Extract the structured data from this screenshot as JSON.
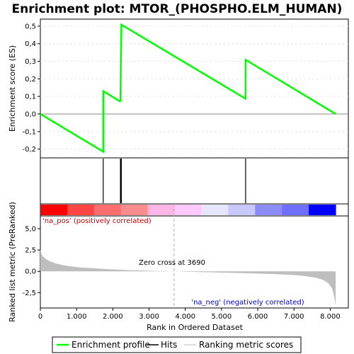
{
  "chart_data": {
    "type": "line",
    "title": "Enrichment plot: MTOR_(PHOSPHO.ELM_HUMAN)",
    "top_panel": {
      "ylabel": "Enrichment score (ES)",
      "ylim": [
        -0.25,
        0.54
      ],
      "yticks": [
        -0.2,
        -0.1,
        0.0,
        0.1,
        0.2,
        0.3,
        0.4,
        0.5
      ],
      "ytick_labels": [
        "-0,2",
        "-0,1",
        "0,0",
        "0,1",
        "0,2",
        "0,3",
        "0,4",
        "0,5"
      ],
      "grid": true,
      "series": [
        {
          "name": "Enrichment profile",
          "color": "#00ff00",
          "x": [
            0,
            1735,
            1736,
            2190,
            2210,
            2221,
            2235,
            5660,
            5665,
            8150
          ],
          "y": [
            0.0,
            -0.215,
            0.13,
            0.072,
            0.075,
            0.295,
            0.508,
            0.087,
            0.308,
            0.0
          ]
        }
      ]
    },
    "hits": {
      "name": "Hits",
      "color": "#000000",
      "positions": [
        1735,
        2210,
        2221,
        2235,
        5665
      ]
    },
    "color_bar": {
      "colors": [
        "#ff0000",
        "#ff4444",
        "#ff6e6e",
        "#ff8c8c",
        "#ffb6e6",
        "#ffc8ff",
        "#e6e6ff",
        "#c8c8ff",
        "#8c8cff",
        "#6e6eff",
        "#0000ff"
      ]
    },
    "bottom_panel": {
      "ylabel": "Ranked list metric (PreRanked)",
      "xlabel": "Rank in Ordered Dataset",
      "ylim": [
        -4.3,
        6.5
      ],
      "yticks": [
        -2.5,
        0.0,
        2.5,
        5.0
      ],
      "ytick_labels": [
        "-2,5",
        "0,0",
        "2,5",
        "5,0"
      ],
      "xlim": [
        0,
        8500
      ],
      "xticks": [
        0,
        1000,
        2000,
        3000,
        4000,
        5000,
        6000,
        7000,
        8000
      ],
      "xtick_labels": [
        "0",
        "1.000",
        "2.000",
        "3.000",
        "4.000",
        "5.000",
        "6.000",
        "7.000",
        "8.000"
      ],
      "series": [
        {
          "name": "Ranking metric scores",
          "color": "#bebebe",
          "x": [
            0,
            30,
            80,
            150,
            250,
            400,
            600,
            800,
            1000,
            1200,
            1500,
            1800,
            2100,
            2500,
            3000,
            3500,
            3690,
            4000,
            4500,
            5000,
            5500,
            6000,
            6500,
            7000,
            7300,
            7600,
            7800,
            7950,
            8050,
            8100,
            8130,
            8150
          ],
          "y": [
            2.6,
            2.0,
            1.7,
            1.45,
            1.2,
            0.95,
            0.75,
            0.6,
            0.5,
            0.43,
            0.35,
            0.27,
            0.2,
            0.14,
            0.07,
            0.02,
            0.0,
            -0.04,
            -0.1,
            -0.15,
            -0.2,
            -0.26,
            -0.33,
            -0.43,
            -0.55,
            -0.75,
            -1.0,
            -1.4,
            -2.0,
            -2.8,
            -3.5,
            -4.0
          ]
        }
      ],
      "zero_cross": 3690,
      "annotations": {
        "pos_label": "'na_pos' (positively correlated)",
        "neg_label": "'na_neg' (negatively correlated)",
        "zero_cross_label": "Zero cross at 3690"
      }
    },
    "legend": {
      "placement": "bottom",
      "entries": [
        {
          "label": "Enrichment profile",
          "color": "#00ff00"
        },
        {
          "label": "Hits",
          "color": "#000000"
        },
        {
          "label": "Ranking metric scores",
          "color": "#bebebe"
        }
      ]
    }
  }
}
